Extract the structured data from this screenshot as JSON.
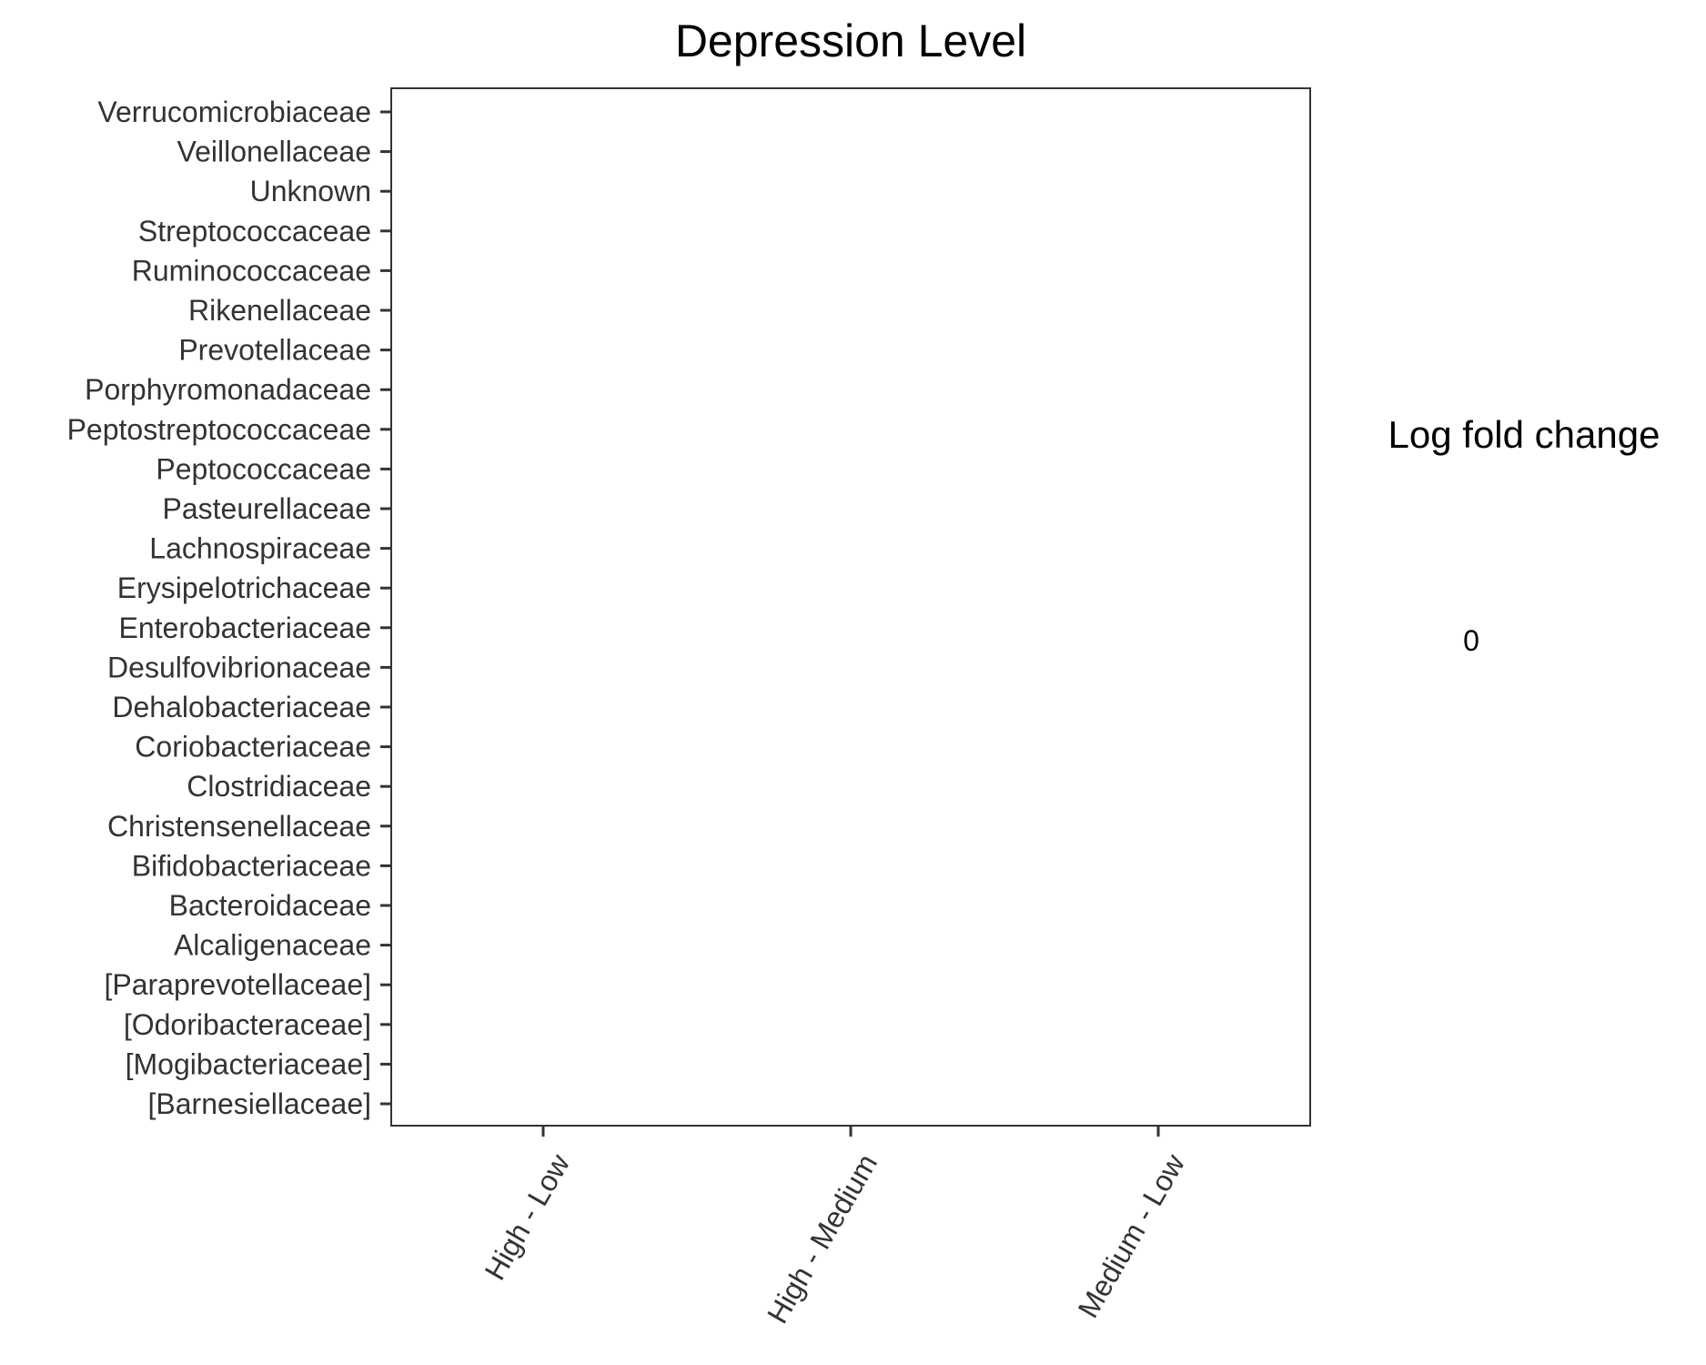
{
  "chart_data": {
    "type": "heatmap",
    "title": "Depression Level",
    "xlabel": "",
    "ylabel": "",
    "x_categories": [
      "High - Low",
      "High - Medium",
      "Medium - Low"
    ],
    "y_categories": [
      "Verrucomicrobiaceae",
      "Veillonellaceae",
      "Unknown",
      "Streptococcaceae",
      "Ruminococcaceae",
      "Rikenellaceae",
      "Prevotellaceae",
      "Porphyromonadaceae",
      "Peptostreptococcaceae",
      "Peptococcaceae",
      "Pasteurellaceae",
      "Lachnospiraceae",
      "Erysipelotrichaceae",
      "Enterobacteriaceae",
      "Desulfovibrionaceae",
      "Dehalobacteriaceae",
      "Coriobacteriaceae",
      "Clostridiaceae",
      "Christensenellaceae",
      "Bifidobacteriaceae",
      "Bacteroidaceae",
      "Alcaligenaceae",
      "[Paraprevotellaceae]",
      "[Odoribacteraceae]",
      "[Mogibacteriaceae]",
      "[Barnesiellaceae]"
    ],
    "cells": [],
    "legend": {
      "title": "Log fold change",
      "labels": [
        "0"
      ],
      "position": "right"
    },
    "grid": false
  }
}
